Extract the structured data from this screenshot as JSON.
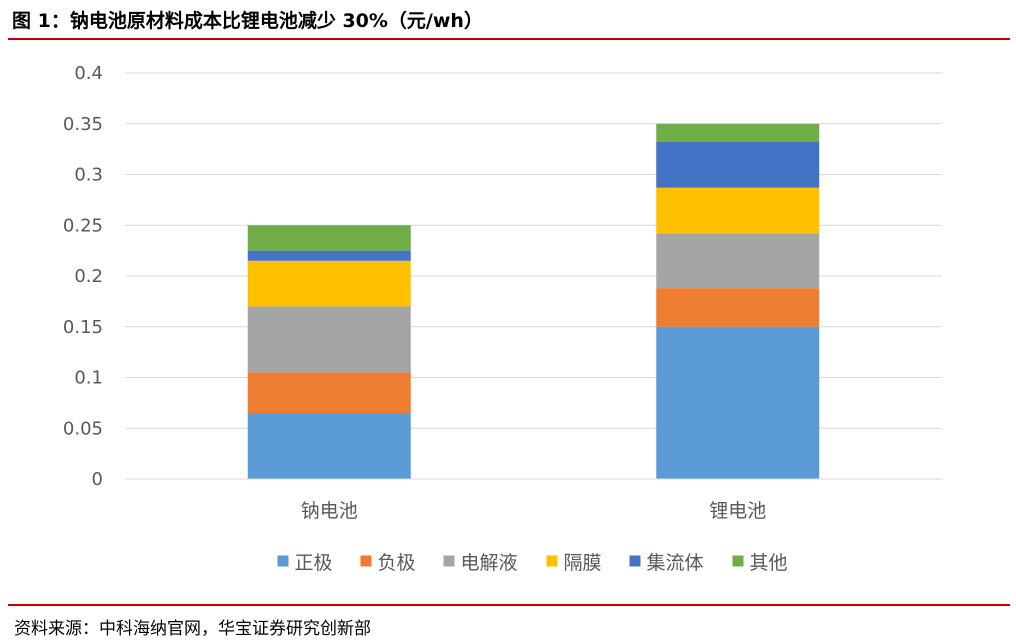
{
  "figure": {
    "title": "图 1：钠电池原材料成本比锂电池减少 30%（元/wh）",
    "source": "资料来源：中科海纳官网，华宝证券研究创新部"
  },
  "colors": {
    "rule": "#C00000",
    "grid": "#D9D9D9",
    "text": "#595959"
  },
  "chart_data": {
    "type": "bar",
    "stacked": true,
    "categories": [
      "钠电池",
      "锂电池"
    ],
    "series": [
      {
        "name": "正极",
        "color": "#5B9BD5",
        "values": [
          0.065,
          0.15
        ]
      },
      {
        "name": "负极",
        "color": "#ED7D31",
        "values": [
          0.04,
          0.038
        ]
      },
      {
        "name": "电解液",
        "color": "#A5A5A5",
        "values": [
          0.065,
          0.054
        ]
      },
      {
        "name": "隔膜",
        "color": "#FFC000",
        "values": [
          0.045,
          0.045
        ]
      },
      {
        "name": "集流体",
        "color": "#4472C4",
        "values": [
          0.01,
          0.045
        ]
      },
      {
        "name": "其他",
        "color": "#70AD47",
        "values": [
          0.025,
          0.018
        ]
      }
    ],
    "ylim": [
      0,
      0.4
    ],
    "yticks": [
      "0",
      "0.05",
      "0.1",
      "0.15",
      "0.2",
      "0.25",
      "0.3",
      "0.35",
      "0.4"
    ],
    "grid": true,
    "legend": "bottom",
    "xlabel": "",
    "ylabel": ""
  }
}
